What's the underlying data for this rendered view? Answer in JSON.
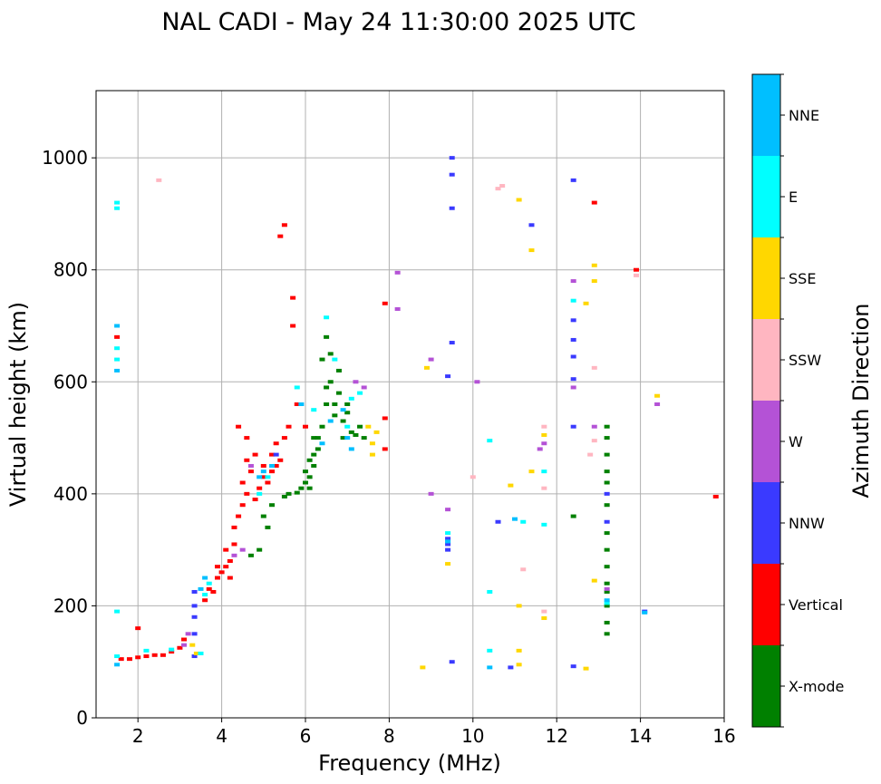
{
  "chart_data": {
    "type": "scatter",
    "title": "NAL CADI - May 24 11:30:00 2025 UTC",
    "xlabel": "Frequency (MHz)",
    "ylabel": "Virtual height (km)",
    "xlim": [
      1,
      16
    ],
    "ylim": [
      0,
      1120
    ],
    "xticks": [
      2,
      4,
      6,
      8,
      10,
      12,
      14,
      16
    ],
    "yticks": [
      0,
      200,
      400,
      600,
      800,
      1000
    ],
    "grid": true,
    "colorbar": {
      "label": "Azimuth Direction",
      "categories": [
        {
          "name": "X-mode",
          "color": "#008000"
        },
        {
          "name": "Vertical",
          "color": "#ff0000"
        },
        {
          "name": "NNW",
          "color": "#3a3aff"
        },
        {
          "name": "W",
          "color": "#b452d6"
        },
        {
          "name": "SSW",
          "color": "#ffb6c1"
        },
        {
          "name": "SSE",
          "color": "#ffd700"
        },
        {
          "name": "E",
          "color": "#00ffff"
        },
        {
          "name": "NNE",
          "color": "#00bfff"
        }
      ]
    },
    "series": [
      {
        "name": "X-mode",
        "points": [
          [
            5.5,
            395
          ],
          [
            5.6,
            400
          ],
          [
            5.8,
            402
          ],
          [
            5.9,
            410
          ],
          [
            6.0,
            420
          ],
          [
            6.0,
            440
          ],
          [
            6.1,
            430
          ],
          [
            6.1,
            460
          ],
          [
            6.2,
            450
          ],
          [
            6.2,
            470
          ],
          [
            6.3,
            480
          ],
          [
            6.3,
            500
          ],
          [
            6.4,
            520
          ],
          [
            6.5,
            560
          ],
          [
            6.5,
            590
          ],
          [
            6.5,
            680
          ],
          [
            6.6,
            600
          ],
          [
            6.7,
            560
          ],
          [
            6.7,
            540
          ],
          [
            6.8,
            620
          ],
          [
            6.8,
            580
          ],
          [
            6.9,
            500
          ],
          [
            6.9,
            530
          ],
          [
            7.0,
            545
          ],
          [
            7.0,
            560
          ],
          [
            7.1,
            510
          ],
          [
            7.2,
            505
          ],
          [
            7.3,
            520
          ],
          [
            7.4,
            500
          ],
          [
            5.2,
            380
          ],
          [
            5.0,
            360
          ],
          [
            5.1,
            340
          ],
          [
            4.9,
            300
          ],
          [
            4.7,
            290
          ],
          [
            6.6,
            650
          ],
          [
            6.4,
            640
          ],
          [
            6.2,
            500
          ],
          [
            6.1,
            410
          ],
          [
            13.2,
            150
          ],
          [
            13.2,
            170
          ],
          [
            13.2,
            200
          ],
          [
            13.2,
            225
          ],
          [
            13.2,
            240
          ],
          [
            13.2,
            270
          ],
          [
            13.2,
            300
          ],
          [
            13.2,
            330
          ],
          [
            13.2,
            380
          ],
          [
            13.2,
            420
          ],
          [
            13.2,
            440
          ],
          [
            13.2,
            470
          ],
          [
            13.2,
            500
          ],
          [
            13.2,
            520
          ],
          [
            12.4,
            360
          ]
        ]
      },
      {
        "name": "Vertical",
        "points": [
          [
            1.6,
            105
          ],
          [
            1.8,
            105
          ],
          [
            2.0,
            108
          ],
          [
            2.2,
            110
          ],
          [
            2.4,
            112
          ],
          [
            2.6,
            112
          ],
          [
            2.8,
            118
          ],
          [
            3.0,
            125
          ],
          [
            3.1,
            140
          ],
          [
            3.6,
            210
          ],
          [
            3.7,
            230
          ],
          [
            3.8,
            225
          ],
          [
            3.9,
            250
          ],
          [
            4.0,
            260
          ],
          [
            4.1,
            270
          ],
          [
            4.1,
            300
          ],
          [
            4.2,
            280
          ],
          [
            4.3,
            310
          ],
          [
            4.3,
            340
          ],
          [
            4.4,
            360
          ],
          [
            4.5,
            380
          ],
          [
            4.5,
            420
          ],
          [
            4.6,
            400
          ],
          [
            4.6,
            460
          ],
          [
            4.7,
            440
          ],
          [
            4.8,
            390
          ],
          [
            4.8,
            470
          ],
          [
            4.9,
            410
          ],
          [
            5.0,
            430
          ],
          [
            5.0,
            450
          ],
          [
            5.1,
            420
          ],
          [
            5.2,
            440
          ],
          [
            5.2,
            470
          ],
          [
            5.3,
            450
          ],
          [
            5.3,
            490
          ],
          [
            5.4,
            460
          ],
          [
            5.5,
            500
          ],
          [
            5.6,
            520
          ],
          [
            5.5,
            880
          ],
          [
            5.4,
            860
          ],
          [
            5.7,
            750
          ],
          [
            5.7,
            700
          ],
          [
            5.8,
            560
          ],
          [
            6.0,
            520
          ],
          [
            1.5,
            680
          ],
          [
            2.0,
            160
          ],
          [
            7.9,
            740
          ],
          [
            7.9,
            535
          ],
          [
            7.9,
            480
          ],
          [
            12.9,
            920
          ],
          [
            13.9,
            800
          ],
          [
            15.8,
            395
          ],
          [
            4.4,
            520
          ],
          [
            4.6,
            500
          ],
          [
            3.9,
            270
          ],
          [
            4.2,
            250
          ]
        ]
      },
      {
        "name": "NNW",
        "points": [
          [
            3.35,
            110
          ],
          [
            3.35,
            150
          ],
          [
            3.35,
            180
          ],
          [
            3.35,
            200
          ],
          [
            3.35,
            225
          ],
          [
            9.5,
            1000
          ],
          [
            9.5,
            970
          ],
          [
            9.5,
            910
          ],
          [
            9.5,
            670
          ],
          [
            9.4,
            610
          ],
          [
            9.4,
            320
          ],
          [
            9.4,
            310
          ],
          [
            9.4,
            300
          ],
          [
            9.5,
            100
          ],
          [
            10.6,
            350
          ],
          [
            11.4,
            880
          ],
          [
            12.4,
            960
          ],
          [
            12.4,
            710
          ],
          [
            12.4,
            675
          ],
          [
            12.4,
            645
          ],
          [
            12.4,
            605
          ],
          [
            12.4,
            520
          ],
          [
            12.4,
            92
          ],
          [
            13.2,
            400
          ],
          [
            13.2,
            350
          ],
          [
            14.1,
            190
          ],
          [
            10.9,
            90
          ],
          [
            5.3,
            470
          ]
        ]
      },
      {
        "name": "W",
        "points": [
          [
            3.1,
            130
          ],
          [
            3.2,
            150
          ],
          [
            4.3,
            290
          ],
          [
            4.5,
            300
          ],
          [
            4.7,
            450
          ],
          [
            7.2,
            600
          ],
          [
            7.4,
            590
          ],
          [
            8.2,
            795
          ],
          [
            8.2,
            730
          ],
          [
            9.0,
            640
          ],
          [
            9.0,
            400
          ],
          [
            9.4,
            372
          ],
          [
            10.1,
            600
          ],
          [
            11.7,
            490
          ],
          [
            12.4,
            780
          ],
          [
            12.4,
            590
          ],
          [
            12.9,
            520
          ],
          [
            13.2,
            230
          ],
          [
            14.4,
            560
          ],
          [
            11.6,
            480
          ]
        ]
      },
      {
        "name": "SSW",
        "points": [
          [
            2.5,
            960
          ],
          [
            10.6,
            945
          ],
          [
            10.7,
            950
          ],
          [
            12.8,
            470
          ],
          [
            12.9,
            495
          ],
          [
            12.9,
            625
          ],
          [
            13.9,
            790
          ],
          [
            11.7,
            520
          ],
          [
            11.7,
            410
          ],
          [
            11.7,
            190
          ],
          [
            10.0,
            430
          ],
          [
            11.2,
            265
          ]
        ]
      },
      {
        "name": "SSE",
        "points": [
          [
            3.3,
            130
          ],
          [
            3.4,
            115
          ],
          [
            7.5,
            520
          ],
          [
            7.6,
            490
          ],
          [
            7.6,
            470
          ],
          [
            7.7,
            510
          ],
          [
            8.9,
            625
          ],
          [
            9.4,
            275
          ],
          [
            10.9,
            415
          ],
          [
            11.1,
            925
          ],
          [
            11.1,
            200
          ],
          [
            11.1,
            120
          ],
          [
            11.1,
            95
          ],
          [
            11.4,
            835
          ],
          [
            11.4,
            440
          ],
          [
            11.7,
            505
          ],
          [
            11.7,
            178
          ],
          [
            12.7,
            740
          ],
          [
            12.9,
            808
          ],
          [
            12.9,
            780
          ],
          [
            12.9,
            245
          ],
          [
            12.7,
            88
          ],
          [
            14.4,
            575
          ],
          [
            8.8,
            90
          ]
        ]
      },
      {
        "name": "E",
        "points": [
          [
            1.5,
            920
          ],
          [
            1.5,
            910
          ],
          [
            1.5,
            660
          ],
          [
            1.5,
            640
          ],
          [
            1.5,
            190
          ],
          [
            1.5,
            110
          ],
          [
            2.2,
            120
          ],
          [
            2.8,
            122
          ],
          [
            3.5,
            115
          ],
          [
            3.6,
            220
          ],
          [
            3.7,
            240
          ],
          [
            4.9,
            400
          ],
          [
            5.1,
            430
          ],
          [
            5.8,
            590
          ],
          [
            6.2,
            550
          ],
          [
            6.5,
            715
          ],
          [
            7.0,
            520
          ],
          [
            7.1,
            570
          ],
          [
            7.3,
            580
          ],
          [
            10.4,
            495
          ],
          [
            10.4,
            225
          ],
          [
            10.4,
            120
          ],
          [
            11.7,
            440
          ],
          [
            11.7,
            345
          ],
          [
            11.2,
            350
          ],
          [
            12.4,
            745
          ],
          [
            13.2,
            205
          ],
          [
            9.4,
            330
          ],
          [
            6.7,
            640
          ]
        ]
      },
      {
        "name": "NNE",
        "points": [
          [
            1.5,
            700
          ],
          [
            1.5,
            620
          ],
          [
            1.5,
            95
          ],
          [
            3.5,
            230
          ],
          [
            3.6,
            250
          ],
          [
            4.9,
            430
          ],
          [
            5.0,
            440
          ],
          [
            5.2,
            450
          ],
          [
            6.4,
            490
          ],
          [
            6.6,
            530
          ],
          [
            6.9,
            550
          ],
          [
            7.0,
            500
          ],
          [
            7.1,
            480
          ],
          [
            9.4,
            315
          ],
          [
            11.0,
            355
          ],
          [
            13.2,
            210
          ],
          [
            14.1,
            188
          ],
          [
            10.4,
            90
          ],
          [
            5.9,
            560
          ]
        ]
      }
    ]
  }
}
